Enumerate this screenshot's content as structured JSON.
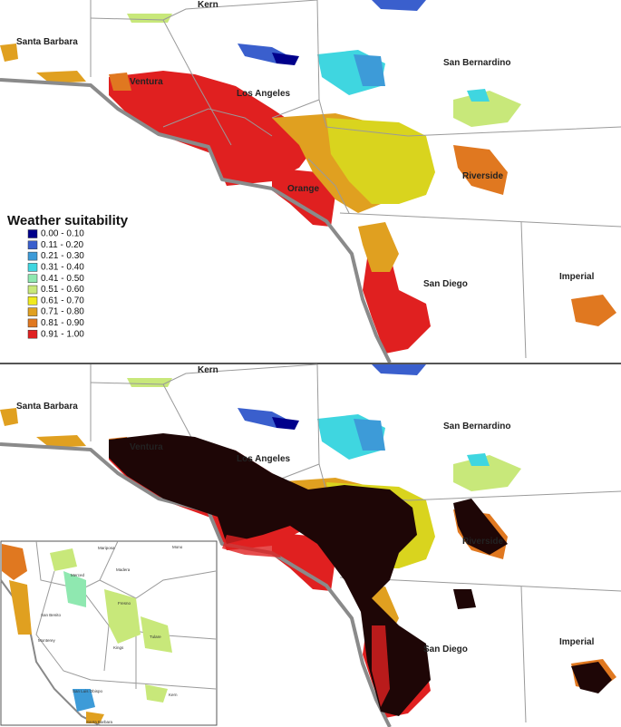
{
  "top_panel": {
    "county_labels": [
      "Kern",
      "Santa Barbara",
      "Ventura",
      "Los Angeles",
      "San Bernardino",
      "Orange",
      "Riverside",
      "San Diego",
      "Imperial"
    ]
  },
  "legend": {
    "title": "Weather suitability",
    "items": [
      {
        "label": "0.00 - 0.10",
        "color": "#00008b"
      },
      {
        "label": "0.11 - 0.20",
        "color": "#3a5fcd"
      },
      {
        "label": "0.21 - 0.30",
        "color": "#3d9bd8"
      },
      {
        "label": "0.31 - 0.40",
        "color": "#3fd6e0"
      },
      {
        "label": "0.41 - 0.50",
        "color": "#8fe8b0"
      },
      {
        "label": "0.51 - 0.60",
        "color": "#c8e87a"
      },
      {
        "label": "0.61 - 0.70",
        "color": "#f0ea1e"
      },
      {
        "label": "0.71 - 0.80",
        "color": "#e0a020"
      },
      {
        "label": "0.81 - 0.90",
        "color": "#e07820"
      },
      {
        "label": "0.91 - 1.00",
        "color": "#e02020"
      }
    ]
  },
  "bottom_panel": {
    "county_labels": [
      "Kern",
      "Santa Barbara",
      "Ventura",
      "Los Angeles",
      "San Bernardino",
      "Riverside",
      "San Diego",
      "Imperial"
    ]
  },
  "inset": {
    "labels": [
      "Mariposa",
      "Mono",
      "Merced",
      "Madera",
      "Fresno",
      "San Benito",
      "Monterey",
      "Tulare",
      "Kings",
      "San Luis Obispo",
      "Kern",
      "Santa Barbara"
    ]
  }
}
